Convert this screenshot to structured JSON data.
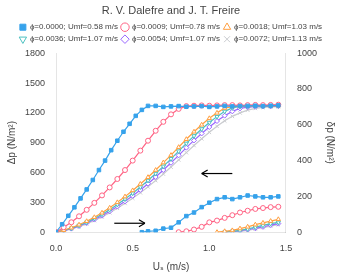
{
  "chart_data": {
    "type": "line",
    "title": "R. V. Dalefre and J. T. Freire",
    "x_label": "Uₛ (m/s)",
    "y_label": "Δp (N/m²)",
    "y2_label": "δp (N/m²)",
    "xlim": [
      0.0,
      1.5
    ],
    "xticks": [
      {
        "value": 0.0,
        "label": "0.0"
      },
      0.5,
      {
        "value": 1.0,
        "label": "1.0"
      },
      1.5
    ],
    "ylim": [
      0,
      1800
    ],
    "yticks": [
      0,
      300,
      600,
      900,
      1200,
      1500,
      1800
    ],
    "y2lim": [
      0,
      1000
    ],
    "y2ticks": [
      0,
      200,
      400,
      600,
      800,
      1000
    ],
    "grid": false,
    "legend": "top",
    "series": [
      {
        "name": "ϕ=0.0000; Umf=0.58 m/s",
        "color": "#36a2eb",
        "marker": "square",
        "x": [
          0.0,
          0.04,
          0.08,
          0.12,
          0.16,
          0.2,
          0.24,
          0.28,
          0.32,
          0.36,
          0.4,
          0.44,
          0.48,
          0.52,
          0.56,
          0.6,
          0.65,
          0.7,
          0.75,
          0.8,
          0.85,
          0.9,
          0.95,
          1.0,
          1.05,
          1.1,
          1.15,
          1.2,
          1.25,
          1.3,
          1.35,
          1.4,
          1.45
        ],
        "values": [
          0,
          80,
          165,
          250,
          340,
          430,
          525,
          625,
          720,
          825,
          920,
          1010,
          1090,
          1170,
          1230,
          1270,
          1270,
          1260,
          1265,
          1268,
          1262,
          1265,
          1268,
          1260,
          1265,
          1270,
          1265,
          1268,
          1270,
          1272,
          1268,
          1272,
          1275
        ]
      },
      {
        "name": "ϕ=0.0000; Umf=0.58 m/s",
        "color": "#36a2eb",
        "marker": "square",
        "axis": "y2",
        "x": [
          0.56,
          0.6,
          0.65,
          0.7,
          0.75,
          0.8,
          0.85,
          0.9,
          0.95,
          1.0,
          1.05,
          1.1,
          1.15,
          1.2,
          1.25,
          1.3,
          1.35,
          1.4,
          1.45
        ],
        "values": [
          0,
          5,
          8,
          20,
          25,
          55,
          90,
          110,
          140,
          165,
          185,
          195,
          185,
          195,
          205,
          200,
          195,
          195,
          200
        ]
      },
      {
        "name": "ϕ=0.0009; Umf=0.78 m/s",
        "color": "#ff6384",
        "marker": "circle-open",
        "x": [
          0.0,
          0.05,
          0.1,
          0.15,
          0.2,
          0.25,
          0.3,
          0.35,
          0.4,
          0.45,
          0.5,
          0.55,
          0.6,
          0.65,
          0.7,
          0.75,
          0.8,
          0.85,
          0.9,
          0.95,
          1.0,
          1.05,
          1.1,
          1.15,
          1.2,
          1.25,
          1.3,
          1.35,
          1.4,
          1.45
        ],
        "values": [
          0,
          50,
          100,
          160,
          225,
          295,
          370,
          450,
          535,
          625,
          720,
          820,
          920,
          1020,
          1110,
          1185,
          1240,
          1268,
          1272,
          1275,
          1272,
          1275,
          1278,
          1278,
          1275,
          1278,
          1280,
          1278,
          1280,
          1282
        ]
      },
      {
        "name": "ϕ=0.0009; Umf=0.78 m/s",
        "color": "#ff6384",
        "marker": "circle-open",
        "axis": "y2",
        "x": [
          0.8,
          0.85,
          0.9,
          0.95,
          1.0,
          1.05,
          1.1,
          1.15,
          1.2,
          1.25,
          1.3,
          1.35,
          1.4,
          1.45
        ],
        "values": [
          0,
          5,
          15,
          30,
          55,
          65,
          80,
          95,
          110,
          120,
          130,
          135,
          140,
          142
        ]
      },
      {
        "name": "ϕ=0.0018; Umf=1.03 m/s",
        "color": "#ff9f40",
        "marker": "triangle-up-open",
        "x": [
          0.0,
          0.05,
          0.1,
          0.15,
          0.2,
          0.25,
          0.3,
          0.35,
          0.4,
          0.45,
          0.5,
          0.55,
          0.6,
          0.65,
          0.7,
          0.75,
          0.8,
          0.85,
          0.9,
          0.95,
          1.0,
          1.05,
          1.1,
          1.15,
          1.2,
          1.25,
          1.3,
          1.35,
          1.4,
          1.45
        ],
        "values": [
          0,
          20,
          45,
          75,
          110,
          150,
          195,
          245,
          300,
          358,
          420,
          485,
          553,
          625,
          700,
          775,
          855,
          935,
          1010,
          1080,
          1145,
          1200,
          1248,
          1262,
          1268,
          1268,
          1272,
          1272,
          1270,
          1272
        ]
      },
      {
        "name": "ϕ=0.0018; Umf=1.03 m/s",
        "color": "#ff9f40",
        "marker": "triangle-up-open",
        "axis": "y2",
        "x": [
          1.05,
          1.1,
          1.15,
          1.2,
          1.25,
          1.3,
          1.35,
          1.4,
          1.45
        ],
        "values": [
          0,
          5,
          10,
          20,
          30,
          42,
          52,
          62,
          72
        ]
      },
      {
        "name": "ϕ=0.0036; Umf=1.07 m/s",
        "color": "#4bc0c0",
        "marker": "triangle-down-open",
        "x": [
          0.0,
          0.05,
          0.1,
          0.15,
          0.2,
          0.25,
          0.3,
          0.35,
          0.4,
          0.45,
          0.5,
          0.55,
          0.6,
          0.65,
          0.7,
          0.75,
          0.8,
          0.85,
          0.9,
          0.95,
          1.0,
          1.05,
          1.1,
          1.15,
          1.2,
          1.25,
          1.3,
          1.35,
          1.4,
          1.45
        ],
        "values": [
          0,
          18,
          40,
          68,
          100,
          138,
          180,
          226,
          278,
          333,
          392,
          454,
          520,
          590,
          662,
          738,
          815,
          893,
          968,
          1038,
          1103,
          1162,
          1215,
          1250,
          1265,
          1268,
          1270,
          1270,
          1272,
          1272
        ]
      },
      {
        "name": "ϕ=0.0036; Umf=1.07 m/s",
        "color": "#4bc0c0",
        "marker": "triangle-down-open",
        "axis": "y2",
        "x": [
          1.1,
          1.15,
          1.2,
          1.25,
          1.3,
          1.35,
          1.4,
          1.45
        ],
        "values": [
          0,
          5,
          10,
          18,
          28,
          38,
          48,
          55
        ]
      },
      {
        "name": "ϕ=0.0054; Umf=1.07 m/s",
        "color": "#9966ff",
        "marker": "diamond-open",
        "x": [
          0.0,
          0.05,
          0.1,
          0.15,
          0.2,
          0.25,
          0.3,
          0.35,
          0.4,
          0.45,
          0.5,
          0.55,
          0.6,
          0.65,
          0.7,
          0.75,
          0.8,
          0.85,
          0.9,
          0.95,
          1.0,
          1.05,
          1.1,
          1.15,
          1.2,
          1.25,
          1.3,
          1.35,
          1.4,
          1.45
        ],
        "values": [
          0,
          16,
          36,
          62,
          92,
          127,
          166,
          210,
          258,
          310,
          366,
          425,
          488,
          555,
          625,
          698,
          773,
          850,
          923,
          993,
          1058,
          1118,
          1172,
          1215,
          1245,
          1258,
          1262,
          1265,
          1265,
          1268
        ]
      },
      {
        "name": "ϕ=0.0054; Umf=1.07 m/s",
        "color": "#9966ff",
        "marker": "diamond-open",
        "axis": "y2",
        "x": [
          1.1,
          1.15,
          1.2,
          1.25,
          1.3,
          1.35,
          1.4,
          1.45
        ],
        "values": [
          0,
          4,
          8,
          15,
          22,
          30,
          40,
          48
        ]
      },
      {
        "name": "ϕ=0.0072; Umf=1.13 m/s",
        "color": "#c9cbcf",
        "marker": "x",
        "x": [
          0.0,
          0.05,
          0.1,
          0.15,
          0.2,
          0.25,
          0.3,
          0.35,
          0.4,
          0.45,
          0.5,
          0.55,
          0.6,
          0.65,
          0.7,
          0.75,
          0.8,
          0.85,
          0.9,
          0.95,
          1.0,
          1.05,
          1.1,
          1.15,
          1.2,
          1.25,
          1.3,
          1.35,
          1.4,
          1.45
        ],
        "values": [
          0,
          14,
          32,
          56,
          84,
          117,
          154,
          196,
          241,
          290,
          342,
          397,
          456,
          519,
          585,
          655,
          727,
          800,
          872,
          940,
          1005,
          1065,
          1120,
          1165,
          1200,
          1228,
          1245,
          1255,
          1260,
          1262
        ]
      },
      {
        "name": "ϕ=0.0072; Umf=1.13 m/s",
        "color": "#c9cbcf",
        "marker": "x",
        "axis": "y2",
        "x": [
          1.15,
          1.2,
          1.25,
          1.3,
          1.35,
          1.4,
          1.45
        ],
        "values": [
          0,
          5,
          10,
          18,
          26,
          34,
          42
        ]
      }
    ],
    "arrows": [
      {
        "x_start": 0.38,
        "x_end": 0.58,
        "y": 90
      },
      {
        "x_start": 1.15,
        "x_end": 0.95,
        "y": 590
      }
    ]
  }
}
